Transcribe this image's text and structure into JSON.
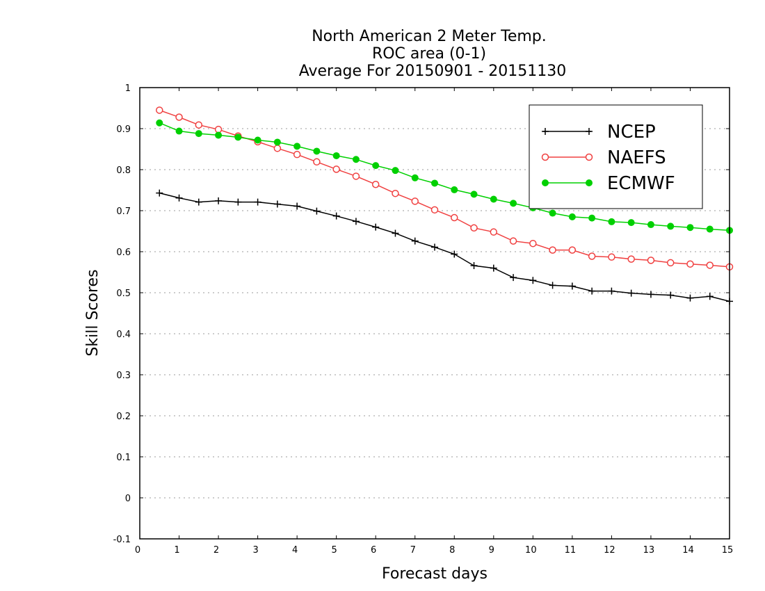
{
  "chart_data": {
    "type": "line",
    "title": [
      "North American 2 Meter Temp.",
      "ROC area (0-1)",
      "Average For 20150901 - 20151130"
    ],
    "xlabel": "Forecast days",
    "ylabel": "Skill Scores",
    "xlim": [
      0,
      15
    ],
    "ylim": [
      -0.1,
      1
    ],
    "xticks": [
      0,
      1,
      2,
      3,
      4,
      5,
      6,
      7,
      8,
      9,
      10,
      11,
      12,
      13,
      14,
      15
    ],
    "xtick_labels": [
      "0",
      "1",
      "2",
      "3",
      "4",
      "5",
      "6",
      "7",
      "8",
      "9",
      "10",
      "11",
      "12",
      "13",
      "14",
      "15"
    ],
    "yticks": [
      -0.1,
      0,
      0.1,
      0.2,
      0.3,
      0.4,
      0.5,
      0.6,
      0.7,
      0.8,
      0.9,
      1
    ],
    "ytick_labels": [
      "-0.1",
      "0",
      "0.1",
      "0.2",
      "0.3",
      "0.4",
      "0.5",
      "0.6",
      "0.7",
      "0.8",
      "0.9",
      "1"
    ],
    "grid": "horizontal-dotted",
    "legend_position": "top-right",
    "x": [
      0.5,
      1,
      1.5,
      2,
      2.5,
      3,
      3.5,
      4,
      4.5,
      5,
      5.5,
      6,
      6.5,
      7,
      7.5,
      8,
      8.5,
      9,
      9.5,
      10,
      10.5,
      11,
      11.5,
      12,
      12.5,
      13,
      13.5,
      14,
      14.5,
      15
    ],
    "series": [
      {
        "name": "NCEP",
        "color": "#000000",
        "marker": "plus",
        "values": [
          0.743,
          0.731,
          0.721,
          0.724,
          0.721,
          0.721,
          0.716,
          0.711,
          0.699,
          0.687,
          0.674,
          0.66,
          0.645,
          0.626,
          0.611,
          0.594,
          0.566,
          0.56,
          0.537,
          0.53,
          0.518,
          0.516,
          0.504,
          0.504,
          0.499,
          0.496,
          0.494,
          0.487,
          0.491,
          0.479
        ]
      },
      {
        "name": "NAEFS",
        "color": "#f04040",
        "marker": "open-circle",
        "values": [
          0.945,
          0.928,
          0.909,
          0.898,
          0.882,
          0.868,
          0.852,
          0.837,
          0.819,
          0.801,
          0.784,
          0.764,
          0.742,
          0.723,
          0.702,
          0.683,
          0.658,
          0.648,
          0.626,
          0.62,
          0.604,
          0.604,
          0.589,
          0.587,
          0.582,
          0.579,
          0.573,
          0.57,
          0.567,
          0.563
        ]
      },
      {
        "name": "ECMWF",
        "color": "#00d000",
        "marker": "filled-circle",
        "values": [
          0.914,
          0.894,
          0.888,
          0.884,
          0.879,
          0.872,
          0.867,
          0.857,
          0.845,
          0.834,
          0.825,
          0.81,
          0.798,
          0.78,
          0.767,
          0.751,
          0.74,
          0.728,
          0.718,
          0.707,
          0.694,
          0.685,
          0.682,
          0.673,
          0.671,
          0.666,
          0.662,
          0.659,
          0.655,
          0.652
        ]
      }
    ]
  }
}
